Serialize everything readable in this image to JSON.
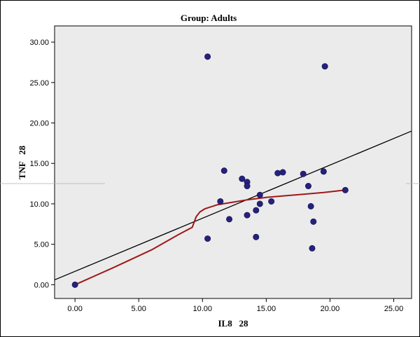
{
  "chart_data": {
    "type": "scatter",
    "title": "Group:  Adults",
    "xlabel": "IL8   28",
    "ylabel": "TNF   28",
    "xlim": [
      -1.6,
      26.4
    ],
    "ylim": [
      -1.7,
      32.0
    ],
    "x_ticks": [
      "0.00",
      "5.00",
      "10.00",
      "15.00",
      "20.00",
      "25.00"
    ],
    "x_tick_values": [
      0,
      5,
      10,
      15,
      20,
      25
    ],
    "y_ticks": [
      "0.00",
      "5.00",
      "10.00",
      "15.00",
      "20.00",
      "25.00",
      "30.00"
    ],
    "y_tick_values": [
      0,
      5,
      10,
      15,
      20,
      25,
      30
    ],
    "grid": false,
    "points": [
      {
        "x": 0.0,
        "y": 0.0
      },
      {
        "x": 10.4,
        "y": 28.2
      },
      {
        "x": 19.6,
        "y": 27.0
      },
      {
        "x": 11.7,
        "y": 14.1
      },
      {
        "x": 13.1,
        "y": 13.1
      },
      {
        "x": 13.5,
        "y": 12.7
      },
      {
        "x": 13.5,
        "y": 12.2
      },
      {
        "x": 15.9,
        "y": 13.8
      },
      {
        "x": 16.3,
        "y": 13.9
      },
      {
        "x": 17.9,
        "y": 13.7
      },
      {
        "x": 19.5,
        "y": 14.0
      },
      {
        "x": 18.3,
        "y": 12.2
      },
      {
        "x": 21.2,
        "y": 11.7
      },
      {
        "x": 14.5,
        "y": 11.1
      },
      {
        "x": 11.4,
        "y": 10.3
      },
      {
        "x": 14.5,
        "y": 10.0
      },
      {
        "x": 15.4,
        "y": 10.3
      },
      {
        "x": 14.2,
        "y": 9.2
      },
      {
        "x": 13.5,
        "y": 8.6
      },
      {
        "x": 12.1,
        "y": 8.1
      },
      {
        "x": 18.5,
        "y": 9.7
      },
      {
        "x": 18.7,
        "y": 7.8
      },
      {
        "x": 10.4,
        "y": 5.7
      },
      {
        "x": 14.2,
        "y": 5.9
      },
      {
        "x": 18.6,
        "y": 4.5
      }
    ],
    "fit_line": {
      "x": [
        -1.6,
        26.4
      ],
      "y": [
        0.6,
        19.0
      ]
    },
    "loess_curve": {
      "x": [
        0.0,
        3.0,
        6.0,
        8.0,
        9.2,
        9.5,
        9.8,
        10.2,
        10.6,
        11.2,
        12.0,
        13.5,
        15.0,
        16.5,
        18.0,
        19.5,
        21.2
      ],
      "y": [
        0.0,
        2.1,
        4.3,
        6.1,
        7.1,
        8.4,
        9.0,
        9.4,
        9.6,
        9.9,
        10.1,
        10.5,
        10.8,
        11.0,
        11.2,
        11.4,
        11.7
      ]
    },
    "colors": {
      "plot_background": "#ebebeb",
      "points": "#25217c",
      "fit_line": "#000000",
      "loess_curve": "#a01818"
    }
  }
}
